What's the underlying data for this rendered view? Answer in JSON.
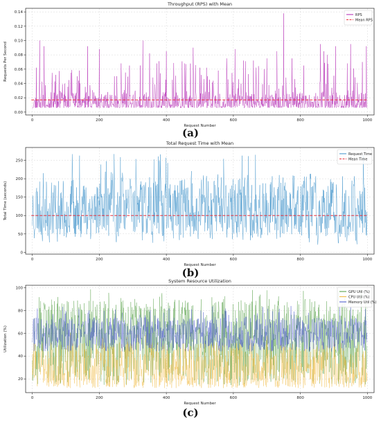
{
  "figure": {
    "panels": [
      {
        "label": "(a)"
      },
      {
        "label": "(b)"
      },
      {
        "label": "(c)"
      }
    ]
  },
  "chart_data": [
    {
      "type": "line",
      "title": "Throughput (RPS) with Mean",
      "xlabel": "Request Number",
      "ylabel": "Requests Per Second",
      "xlim": [
        -20,
        1020
      ],
      "ylim": [
        -0.004,
        0.145
      ],
      "xticks": [
        0,
        200,
        400,
        600,
        800,
        1000
      ],
      "yticks": [
        0.0,
        0.02,
        0.04,
        0.06,
        0.08,
        0.1,
        0.12,
        0.14
      ],
      "ytick_labels": [
        "0.00",
        "0.02",
        "0.04",
        "0.06",
        "0.08",
        "0.10",
        "0.12",
        "0.14"
      ],
      "grid": true,
      "legend_position": "top-right",
      "series": [
        {
          "name": "RPS",
          "color": "#b01fb0",
          "style": "solid",
          "n_points": 1000,
          "x_start": 0,
          "x_step": 1,
          "values_summary": "noisy values mostly 0.005-0.03 with frequent spikes 0.04-0.10",
          "peaks": [
            [
              12,
              0.062
            ],
            [
              22,
              0.1
            ],
            [
              35,
              0.092
            ],
            [
              70,
              0.052
            ],
            [
              115,
              0.055
            ],
            [
              140,
              0.058
            ],
            [
              165,
              0.092
            ],
            [
              200,
              0.088
            ],
            [
              245,
              0.05
            ],
            [
              265,
              0.068
            ],
            [
              290,
              0.065
            ],
            [
              330,
              0.1
            ],
            [
              350,
              0.082
            ],
            [
              372,
              0.068
            ],
            [
              400,
              0.085
            ],
            [
              455,
              0.068
            ],
            [
              480,
              0.09
            ],
            [
              500,
              0.062
            ],
            [
              520,
              0.062
            ],
            [
              555,
              0.058
            ],
            [
              580,
              0.075
            ],
            [
              605,
              0.088
            ],
            [
              630,
              0.072
            ],
            [
              660,
              0.072
            ],
            [
              700,
              0.075
            ],
            [
              730,
              0.085
            ],
            [
              750,
              0.138
            ],
            [
              775,
              0.075
            ],
            [
              810,
              0.065
            ],
            [
              860,
              0.095
            ],
            [
              870,
              0.085
            ],
            [
              880,
              0.08
            ],
            [
              905,
              0.092
            ],
            [
              940,
              0.068
            ],
            [
              950,
              0.095
            ],
            [
              975,
              0.025
            ],
            [
              985,
              0.07
            ],
            [
              997,
              0.092
            ]
          ]
        },
        {
          "name": "Mean RPS",
          "color": "#e8303d",
          "style": "dashed",
          "constant": 0.017
        }
      ]
    },
    {
      "type": "line",
      "title": "Total Request Time with Mean",
      "xlabel": "Request Number",
      "ylabel": "Total Time (seconds)",
      "xlim": [
        -20,
        1020
      ],
      "ylim": [
        -5,
        285
      ],
      "xticks": [
        0,
        200,
        400,
        600,
        800,
        1000
      ],
      "yticks": [
        0,
        50,
        100,
        150,
        200,
        250
      ],
      "grid": true,
      "legend_position": "top-right",
      "series": [
        {
          "name": "Request Time",
          "color": "#3a8fc9",
          "style": "solid",
          "n_points": 1000,
          "x_start": 0,
          "x_step": 1,
          "values_summary": "oscillates roughly 10-240 seconds, occasional peaks near 270"
        },
        {
          "name": "Mean Time",
          "color": "#e8303d",
          "style": "dashed",
          "constant": 100
        }
      ]
    },
    {
      "type": "line",
      "title": "System Resource Utilization",
      "xlabel": "Request Number",
      "ylabel": "Utilization (%)",
      "xlim": [
        -20,
        1020
      ],
      "ylim": [
        8,
        102
      ],
      "xticks": [
        0,
        200,
        400,
        600,
        800,
        1000
      ],
      "yticks": [
        20,
        40,
        60,
        80,
        100
      ],
      "grid": true,
      "legend_position": "top-right",
      "series": [
        {
          "name": "GPU Util (%)",
          "color": "#4a9a3a",
          "style": "solid",
          "n_points": 1000,
          "values_summary": "ranges roughly 12-100"
        },
        {
          "name": "CPU Util (%)",
          "color": "#f0b73a",
          "style": "solid",
          "n_points": 1000,
          "values_summary": "ranges roughly 10-60, mostly 15-45"
        },
        {
          "name": "Memory Util (%)",
          "color": "#4050c8",
          "style": "solid",
          "n_points": 1000,
          "values_summary": "ranges roughly 40-85, mostly 50-75"
        }
      ]
    }
  ]
}
